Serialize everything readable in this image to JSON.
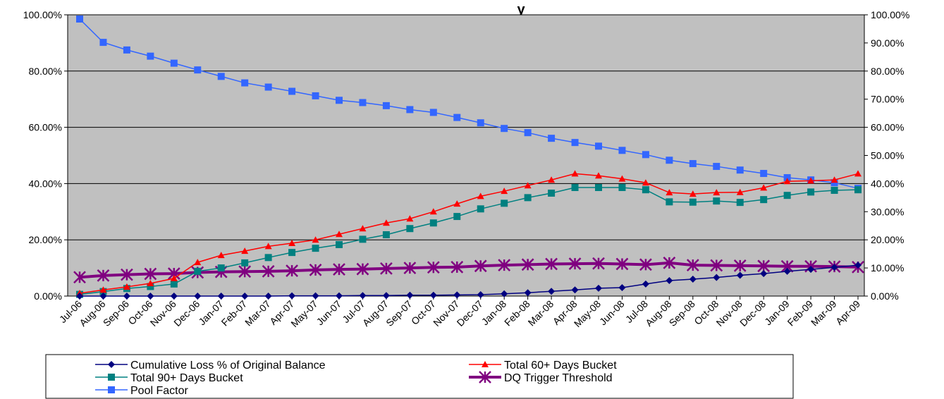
{
  "chart_data": {
    "type": "line",
    "title": "y",
    "categories": [
      "Jul-06",
      "Aug-06",
      "Sep-06",
      "Oct-06",
      "Nov-06",
      "Dec-06",
      "Jan-07",
      "Feb-07",
      "Mar-07",
      "Apr-07",
      "May-07",
      "Jun-07",
      "Jul-07",
      "Aug-07",
      "Sep-07",
      "Oct-07",
      "Nov-07",
      "Dec-07",
      "Jan-08",
      "Feb-08",
      "Mar-08",
      "Apr-08",
      "May-08",
      "Jun-08",
      "Jul-08",
      "Aug-08",
      "Sep-08",
      "Oct-08",
      "Nov-08",
      "Dec-08",
      "Jan-09",
      "Feb-09",
      "Mar-09",
      "Apr-09"
    ],
    "left_axis": {
      "ylim": [
        0,
        100
      ],
      "ticks": [
        "0.00%",
        "20.00%",
        "40.00%",
        "60.00%",
        "80.00%",
        "100.00%"
      ]
    },
    "right_axis": {
      "ylim": [
        0,
        100
      ],
      "ticks": [
        "0.00%",
        "10.00%",
        "20.00%",
        "30.00%",
        "40.00%",
        "50.00%",
        "60.00%",
        "70.00%",
        "80.00%",
        "90.00%",
        "100.00%"
      ]
    },
    "grid": true,
    "plot_background": "#c0c0c0",
    "legend_position": "bottom",
    "series": [
      {
        "name": "Cumulative Loss % of Original Balance",
        "color": "#000080",
        "marker": "diamond",
        "line_width": 1.5,
        "values": [
          0,
          0,
          0,
          0,
          0,
          0,
          0,
          0,
          0,
          0.1,
          0.1,
          0.1,
          0.2,
          0.2,
          0.3,
          0.3,
          0.4,
          0.5,
          0.8,
          1.2,
          1.7,
          2.2,
          2.8,
          3.0,
          4.3,
          5.5,
          6.0,
          6.6,
          7.4,
          8.0,
          8.8,
          9.5,
          10.2,
          11.0
        ]
      },
      {
        "name": "Total 60+ Days Bucket",
        "color": "#ff0000",
        "marker": "triangle",
        "line_width": 1.5,
        "values": [
          1.0,
          2.2,
          3.3,
          4.5,
          6.3,
          12.0,
          14.5,
          16.0,
          17.7,
          18.8,
          20.0,
          22.0,
          24.0,
          26.0,
          27.5,
          30.0,
          32.8,
          35.5,
          37.3,
          39.3,
          41.3,
          43.5,
          42.8,
          41.7,
          40.3,
          36.8,
          36.3,
          36.8,
          36.9,
          38.5,
          40.8,
          41.0,
          41.3,
          43.5
        ]
      },
      {
        "name": "Total 90+ Days Bucket",
        "color": "#008080",
        "marker": "square",
        "line_width": 1.5,
        "values": [
          0.6,
          1.6,
          2.7,
          3.4,
          4.3,
          8.8,
          10.0,
          11.8,
          13.7,
          15.5,
          17.0,
          18.3,
          20.2,
          21.8,
          24.0,
          26.0,
          28.3,
          31.0,
          33.0,
          35.0,
          36.6,
          38.6,
          38.6,
          38.6,
          37.8,
          33.5,
          33.4,
          33.8,
          33.3,
          34.3,
          35.8,
          37.0,
          37.6,
          37.8
        ]
      },
      {
        "name": "DQ Trigger Threshold",
        "color": "#800080",
        "marker": "star",
        "line_width": 4,
        "values": [
          6.7,
          7.3,
          7.6,
          7.9,
          8.0,
          8.4,
          8.6,
          8.7,
          8.8,
          9.0,
          9.3,
          9.5,
          9.6,
          9.8,
          10.0,
          10.2,
          10.3,
          10.7,
          11.0,
          11.2,
          11.4,
          11.5,
          11.6,
          11.4,
          11.2,
          11.8,
          11.0,
          10.9,
          10.8,
          10.7,
          10.6,
          10.6,
          10.5,
          10.3
        ]
      },
      {
        "name": "Pool Factor",
        "color": "#3366ff",
        "marker": "square",
        "line_width": 1.5,
        "axis": "right",
        "values": [
          98.5,
          90.2,
          87.5,
          85.3,
          82.8,
          80.4,
          78.1,
          75.8,
          74.3,
          72.8,
          71.2,
          69.6,
          68.8,
          67.7,
          66.3,
          65.3,
          63.5,
          61.6,
          59.6,
          58.1,
          56.1,
          54.6,
          53.3,
          51.8,
          50.3,
          48.3,
          47.1,
          46.1,
          44.8,
          43.6,
          42.1,
          41.3,
          40.3,
          38.3
        ]
      }
    ]
  }
}
